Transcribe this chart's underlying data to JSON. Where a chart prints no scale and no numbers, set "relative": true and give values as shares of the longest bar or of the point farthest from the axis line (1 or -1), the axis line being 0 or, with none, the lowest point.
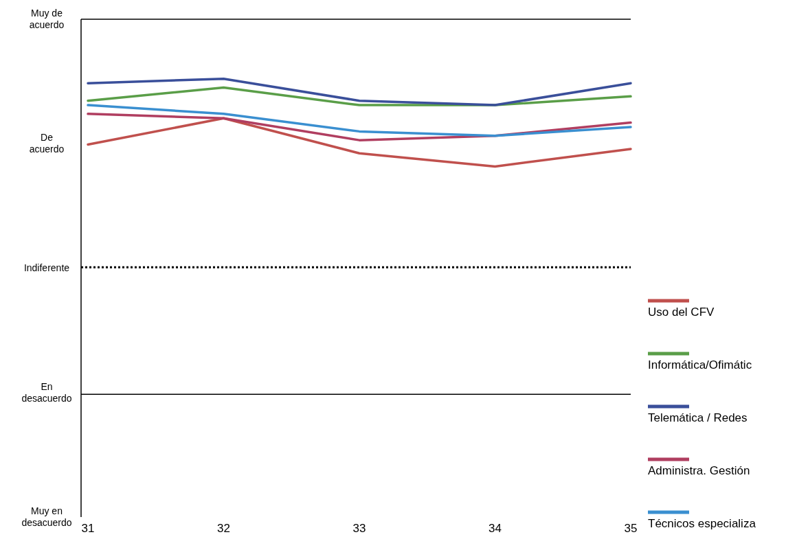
{
  "chart_data": {
    "type": "line",
    "relative": true,
    "categories": [
      "31",
      "32",
      "33",
      "34",
      "35"
    ],
    "series": [
      {
        "name": "Uso del CFV",
        "color": "#c0504d",
        "values": [
          0.85,
          0.91,
          0.83,
          0.8,
          0.84
        ]
      },
      {
        "name": "Informática/Ofimátic",
        "color": "#5a9e48",
        "values": [
          0.95,
          0.98,
          0.94,
          0.94,
          0.96
        ]
      },
      {
        "name": "Telemática / Redes",
        "color": "#3a4f9a",
        "values": [
          0.99,
          1,
          0.95,
          0.94,
          0.99
        ]
      },
      {
        "name": "Administra. Gestión",
        "color": "#b03e60",
        "values": [
          0.92,
          0.91,
          0.86,
          0.87,
          0.9
        ]
      },
      {
        "name": "Técnicos especializa",
        "color": "#3a8fd0",
        "values": [
          0.94,
          0.92,
          0.88,
          0.87,
          0.89
        ]
      }
    ],
    "annotations": [
      "Muy de acuerdo",
      "De acuerdo",
      "Indiferente",
      "En desacuerdo",
      "Muy en desacuerdo"
    ],
    "ref_lines": [
      {
        "axis": "y",
        "value": 0.57,
        "color": "#000000",
        "line_style": "dotted"
      },
      {
        "axis": "y",
        "value": 0.28,
        "color": "#000000",
        "line_style": "solid"
      }
    ],
    "legend": "right",
    "line_style": "solid"
  }
}
